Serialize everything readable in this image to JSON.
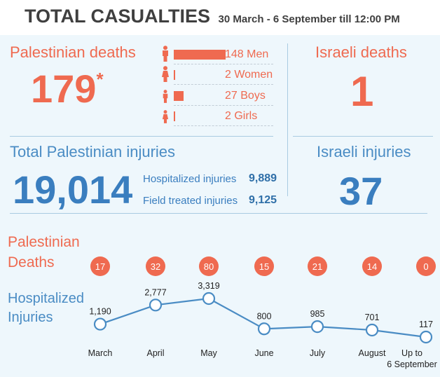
{
  "header": {
    "title": "TOTAL CASUALTIES",
    "subtitle": "30 March - 6 September till 12:00 PM"
  },
  "palestinian_deaths": {
    "label": "Palestinian deaths",
    "total": "179",
    "asterisk": "*",
    "breakdown": [
      {
        "count": 148,
        "label": "148 Men",
        "icon": "man-icon"
      },
      {
        "count": 2,
        "label": "2 Women",
        "icon": "woman-icon"
      },
      {
        "count": 27,
        "label": "27 Boys",
        "icon": "boy-icon"
      },
      {
        "count": 2,
        "label": "2 Girls",
        "icon": "girl-icon"
      }
    ]
  },
  "israeli_deaths": {
    "label": "Israeli deaths",
    "total": "1"
  },
  "palestinian_injuries": {
    "label": "Total Palestinian injuries",
    "total": "19,014",
    "hospitalized_label": "Hospitalized injuries",
    "hospitalized_value": "9,889",
    "field_label": "Field treated injuries",
    "field_value": "9,125"
  },
  "israeli_injuries": {
    "label": "Israeli injuries",
    "total": "37"
  },
  "monthly": {
    "deaths_label_1": "Palestinian",
    "deaths_label_2": "Deaths",
    "injuries_label_1": "Hospitalized",
    "injuries_label_2": "Injuries"
  },
  "colors": {
    "orange": "#ef6a50",
    "blue": "#4a8cc4",
    "title": "#3f3f3f"
  },
  "chart_data": {
    "type": "line",
    "categories": [
      "March",
      "April",
      "May",
      "June",
      "July",
      "August",
      "Up to 6 September"
    ],
    "category_lines": [
      [
        "March"
      ],
      [
        "April"
      ],
      [
        "May"
      ],
      [
        "June"
      ],
      [
        "July"
      ],
      [
        "August"
      ],
      [
        "Up to",
        "6 September"
      ]
    ],
    "series": [
      {
        "name": "Palestinian Deaths",
        "values": [
          17,
          32,
          80,
          15,
          21,
          14,
          0
        ]
      },
      {
        "name": "Hospitalized Injuries",
        "values": [
          1190,
          2777,
          3319,
          800,
          985,
          701,
          117
        ]
      }
    ],
    "value_labels": [
      "1,190",
      "2,777",
      "3,319",
      "800",
      "985",
      "701",
      "117"
    ]
  }
}
